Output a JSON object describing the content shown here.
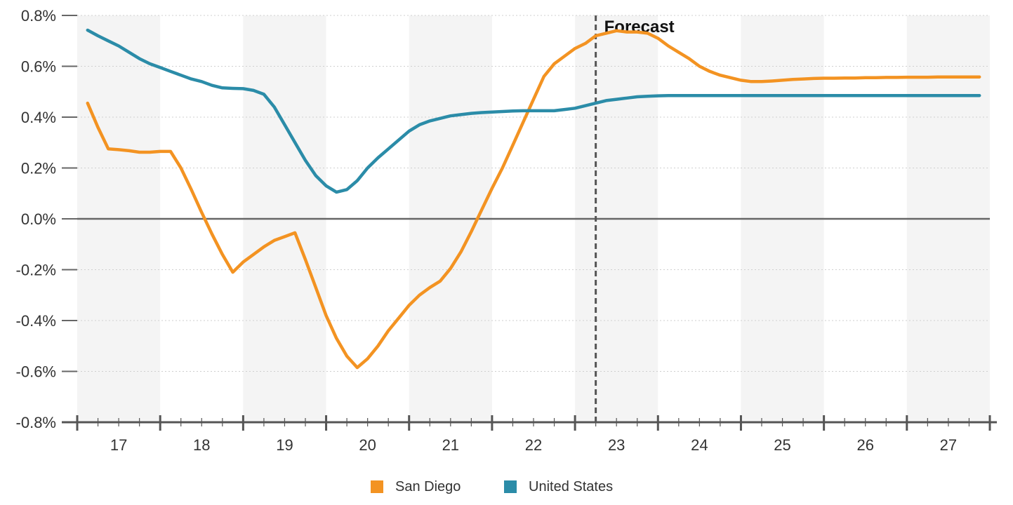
{
  "chart_data": {
    "type": "line",
    "title": "",
    "xlabel": "",
    "ylabel": "",
    "ylim": [
      -0.8,
      0.8
    ],
    "xlim": [
      2016.5,
      2027.5
    ],
    "y_ticks": [
      -0.8,
      -0.6,
      -0.4,
      -0.2,
      0.0,
      0.2,
      0.4,
      0.6,
      0.8
    ],
    "y_tick_labels": [
      "-0.8%",
      "-0.6%",
      "-0.4%",
      "-0.2%",
      "0.0%",
      "0.2%",
      "0.4%",
      "0.6%",
      "0.8%"
    ],
    "x_tick_labels": [
      "17",
      "18",
      "19",
      "20",
      "21",
      "22",
      "23",
      "24",
      "25",
      "26",
      "27"
    ],
    "x_tick_years": [
      2017,
      2018,
      2019,
      2020,
      2021,
      2022,
      2023,
      2024,
      2025,
      2026,
      2027
    ],
    "minor_ticks_per_year": 4,
    "grid": true,
    "alternating_year_bands": true,
    "legend_position": "bottom",
    "forecast": {
      "label": "Forecast",
      "x": 2022.75
    },
    "series": [
      {
        "name": "San Diego",
        "color": "#F39322",
        "x": [
          2016.625,
          2016.75,
          2016.875,
          2017.0,
          2017.125,
          2017.25,
          2017.375,
          2017.5,
          2017.625,
          2017.75,
          2017.875,
          2018.0,
          2018.125,
          2018.25,
          2018.375,
          2018.5,
          2018.625,
          2018.75,
          2018.875,
          2019.0,
          2019.125,
          2019.25,
          2019.375,
          2019.5,
          2019.625,
          2019.75,
          2019.875,
          2020.0,
          2020.125,
          2020.25,
          2020.375,
          2020.5,
          2020.625,
          2020.75,
          2020.875,
          2021.0,
          2021.125,
          2021.25,
          2021.375,
          2021.5,
          2021.625,
          2021.75,
          2021.875,
          2022.0,
          2022.125,
          2022.25,
          2022.375,
          2022.5,
          2022.625,
          2022.75,
          2022.875,
          2023.0,
          2023.125,
          2023.25,
          2023.375,
          2023.5,
          2023.625,
          2023.75,
          2023.875,
          2024.0,
          2024.125,
          2024.25,
          2024.375,
          2024.5,
          2024.625,
          2024.75,
          2024.875,
          2025.0,
          2025.125,
          2025.25,
          2025.375,
          2025.5,
          2025.625,
          2025.75,
          2025.875,
          2026.0,
          2026.125,
          2026.25,
          2026.375,
          2026.5,
          2026.625,
          2026.75,
          2026.875,
          2027.0,
          2027.125,
          2027.25,
          2027.375
        ],
        "values": [
          0.455,
          0.36,
          0.275,
          0.272,
          0.268,
          0.262,
          0.262,
          0.265,
          0.265,
          0.2,
          0.115,
          0.025,
          -0.06,
          -0.14,
          -0.21,
          -0.17,
          -0.14,
          -0.11,
          -0.085,
          -0.07,
          -0.055,
          -0.16,
          -0.27,
          -0.38,
          -0.47,
          -0.54,
          -0.585,
          -0.55,
          -0.5,
          -0.44,
          -0.39,
          -0.34,
          -0.3,
          -0.27,
          -0.245,
          -0.195,
          -0.13,
          -0.05,
          0.035,
          0.12,
          0.2,
          0.29,
          0.38,
          0.47,
          0.56,
          0.61,
          0.64,
          0.67,
          0.69,
          0.72,
          0.73,
          0.74,
          0.735,
          0.735,
          0.73,
          0.71,
          0.68,
          0.655,
          0.63,
          0.6,
          0.58,
          0.565,
          0.555,
          0.545,
          0.54,
          0.54,
          0.542,
          0.545,
          0.548,
          0.55,
          0.552,
          0.553,
          0.553,
          0.554,
          0.554,
          0.555,
          0.555,
          0.556,
          0.556,
          0.557,
          0.557,
          0.557,
          0.558,
          0.558,
          0.558,
          0.558,
          0.558
        ]
      },
      {
        "name": "United States",
        "color": "#2B8CA8",
        "x": [
          2016.625,
          2016.75,
          2016.875,
          2017.0,
          2017.125,
          2017.25,
          2017.375,
          2017.5,
          2017.625,
          2017.75,
          2017.875,
          2018.0,
          2018.125,
          2018.25,
          2018.375,
          2018.5,
          2018.625,
          2018.75,
          2018.875,
          2019.0,
          2019.125,
          2019.25,
          2019.375,
          2019.5,
          2019.625,
          2019.75,
          2019.875,
          2020.0,
          2020.125,
          2020.25,
          2020.375,
          2020.5,
          2020.625,
          2020.75,
          2020.875,
          2021.0,
          2021.125,
          2021.25,
          2021.375,
          2021.5,
          2021.625,
          2021.75,
          2021.875,
          2022.0,
          2022.125,
          2022.25,
          2022.375,
          2022.5,
          2022.625,
          2022.75,
          2022.875,
          2023.0,
          2023.125,
          2023.25,
          2023.375,
          2023.5,
          2023.625,
          2023.75,
          2023.875,
          2024.0,
          2024.125,
          2024.25,
          2024.375,
          2024.5,
          2024.625,
          2024.75,
          2024.875,
          2025.0,
          2025.125,
          2025.25,
          2025.375,
          2025.5,
          2025.625,
          2025.75,
          2025.875,
          2026.0,
          2026.125,
          2026.25,
          2026.375,
          2026.5,
          2026.625,
          2026.75,
          2026.875,
          2027.0,
          2027.125,
          2027.25,
          2027.375
        ],
        "values": [
          0.742,
          0.72,
          0.7,
          0.68,
          0.655,
          0.63,
          0.61,
          0.595,
          0.58,
          0.565,
          0.55,
          0.54,
          0.525,
          0.515,
          0.513,
          0.512,
          0.505,
          0.49,
          0.44,
          0.37,
          0.3,
          0.23,
          0.17,
          0.13,
          0.105,
          0.115,
          0.15,
          0.2,
          0.24,
          0.275,
          0.31,
          0.345,
          0.37,
          0.385,
          0.395,
          0.405,
          0.41,
          0.415,
          0.418,
          0.42,
          0.422,
          0.424,
          0.425,
          0.425,
          0.425,
          0.425,
          0.43,
          0.435,
          0.445,
          0.455,
          0.465,
          0.47,
          0.475,
          0.48,
          0.482,
          0.484,
          0.485,
          0.485,
          0.485,
          0.485,
          0.485,
          0.485,
          0.485,
          0.485,
          0.485,
          0.485,
          0.485,
          0.485,
          0.485,
          0.485,
          0.485,
          0.485,
          0.485,
          0.485,
          0.485,
          0.485,
          0.485,
          0.485,
          0.485,
          0.485,
          0.485,
          0.485,
          0.485,
          0.485,
          0.485,
          0.485,
          0.485
        ]
      }
    ]
  }
}
